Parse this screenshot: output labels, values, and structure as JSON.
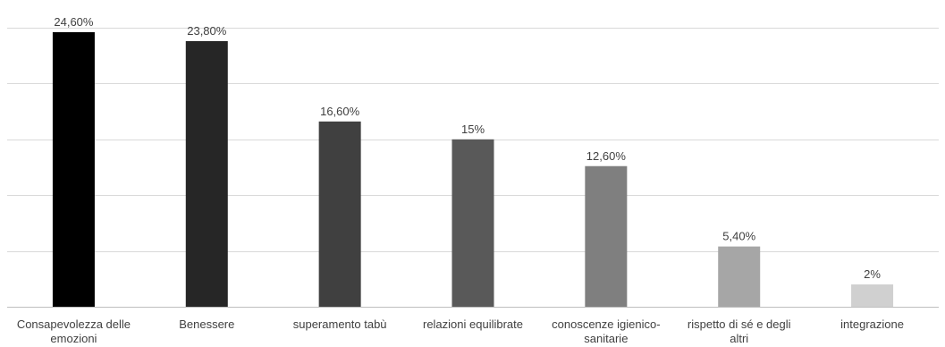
{
  "chart_data": {
    "type": "bar",
    "title": "",
    "xlabel": "",
    "ylabel": "",
    "categories": [
      [
        "Consapevolezza delle",
        "emozioni"
      ],
      [
        "Benessere"
      ],
      [
        "superamento tabù"
      ],
      [
        "relazioni equilibrate"
      ],
      [
        "conoscenze igienico-",
        "sanitarie"
      ],
      [
        "rispetto di sé e degli",
        "altri"
      ],
      [
        "integrazione"
      ]
    ],
    "values": [
      24.6,
      23.8,
      16.6,
      15,
      12.6,
      5.4,
      2
    ],
    "data_labels": [
      "24,60%",
      "23,80%",
      "16,60%",
      "15%",
      "12,60%",
      "5,40%",
      "2%"
    ],
    "bar_colors": [
      "#000000",
      "#262626",
      "#404040",
      "#595959",
      "#7f7f7f",
      "#a6a6a6",
      "#d0d0d0"
    ],
    "ylim": [
      0,
      25
    ],
    "grid": true,
    "legend": "none"
  }
}
